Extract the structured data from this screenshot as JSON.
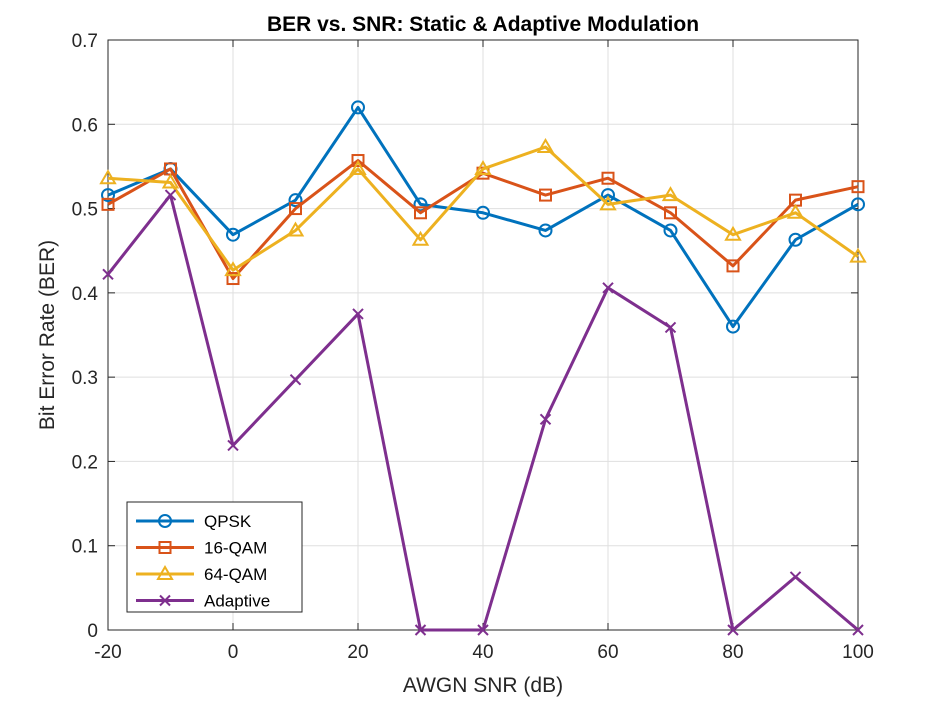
{
  "chart_data": {
    "type": "line",
    "title": "BER vs. SNR: Static & Adaptive Modulation",
    "xlabel": "AWGN SNR (dB)",
    "ylabel": "Bit Error Rate (BER)",
    "xlim": [
      -20,
      100
    ],
    "ylim": [
      0,
      0.7
    ],
    "xticks": [
      -20,
      0,
      20,
      40,
      60,
      80,
      100
    ],
    "yticks": [
      0,
      0.1,
      0.2,
      0.3,
      0.4,
      0.5,
      0.6,
      0.7
    ],
    "xtick_labels": [
      "-20",
      "0",
      "20",
      "40",
      "60",
      "80",
      "100"
    ],
    "ytick_labels": [
      "0",
      "0.1",
      "0.2",
      "0.3",
      "0.4",
      "0.5",
      "0.6",
      "0.7"
    ],
    "grid": true,
    "legend_position": "bottom-left",
    "x": [
      -20,
      -10,
      0,
      10,
      20,
      30,
      40,
      50,
      60,
      70,
      80,
      90,
      100
    ],
    "series": [
      {
        "name": "QPSK",
        "color": "#0072BD",
        "marker": "circle",
        "values": [
          0.516,
          0.547,
          0.469,
          0.51,
          0.62,
          0.505,
          0.495,
          0.474,
          0.516,
          0.474,
          0.36,
          0.463,
          0.505
        ]
      },
      {
        "name": "16-QAM",
        "color": "#D95319",
        "marker": "square",
        "values": [
          0.505,
          0.547,
          0.417,
          0.5,
          0.557,
          0.495,
          0.542,
          0.516,
          0.536,
          0.495,
          0.432,
          0.51,
          0.526
        ]
      },
      {
        "name": "64-QAM",
        "color": "#EDB120",
        "marker": "triangle",
        "values": [
          0.536,
          0.531,
          0.427,
          0.474,
          0.547,
          0.463,
          0.547,
          0.573,
          0.505,
          0.516,
          0.469,
          0.495,
          0.443
        ]
      },
      {
        "name": "Adaptive",
        "color": "#7E2F8E",
        "marker": "x",
        "values": [
          0.422,
          0.516,
          0.219,
          0.297,
          0.375,
          0.0,
          0.0,
          0.25,
          0.406,
          0.359,
          0.0,
          0.063,
          0.0
        ]
      }
    ]
  }
}
